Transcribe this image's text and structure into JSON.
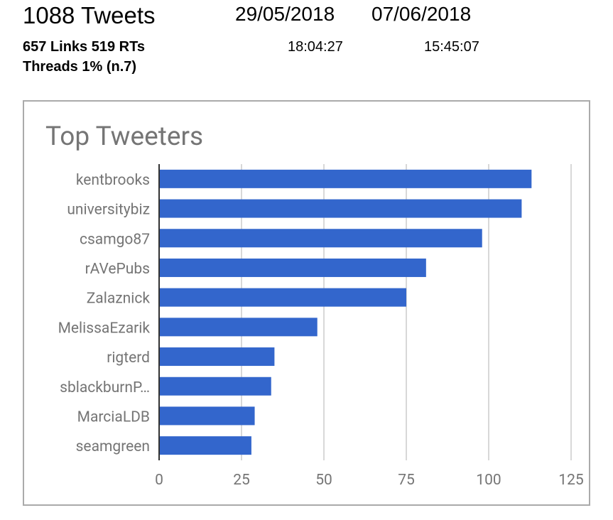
{
  "header": {
    "tweets_total": "1088 Tweets",
    "date_start": "29/05/2018",
    "date_end": "07/06/2018",
    "time_start": "18:04:27",
    "time_end": "15:45:07",
    "stats_line": "657 Links 519 RTs",
    "threads_line": "Threads 1% (n.7)"
  },
  "chart_data": {
    "type": "bar",
    "orientation": "horizontal",
    "title": "Top Tweeters",
    "categories": [
      "kentbrooks",
      "universitybiz",
      "csamgo87",
      "rAVePubs",
      "Zalaznick",
      "MelissaEzarik",
      "rigterd",
      "sblackburnP…",
      "MarciaLDB",
      "seamgreen"
    ],
    "values": [
      113,
      110,
      98,
      81,
      75,
      48,
      35,
      34,
      29,
      28
    ],
    "xlim": [
      0,
      125
    ],
    "xticks": [
      0,
      25,
      50,
      75,
      100,
      125
    ],
    "xtick_labels": [
      "0",
      "25",
      "50",
      "75",
      "100",
      "125"
    ],
    "grid": true,
    "legend": "none",
    "bar_color": "#3366cc",
    "grid_color": "#cccccc",
    "axis_color": "#333333",
    "label_color": "#757575"
  }
}
